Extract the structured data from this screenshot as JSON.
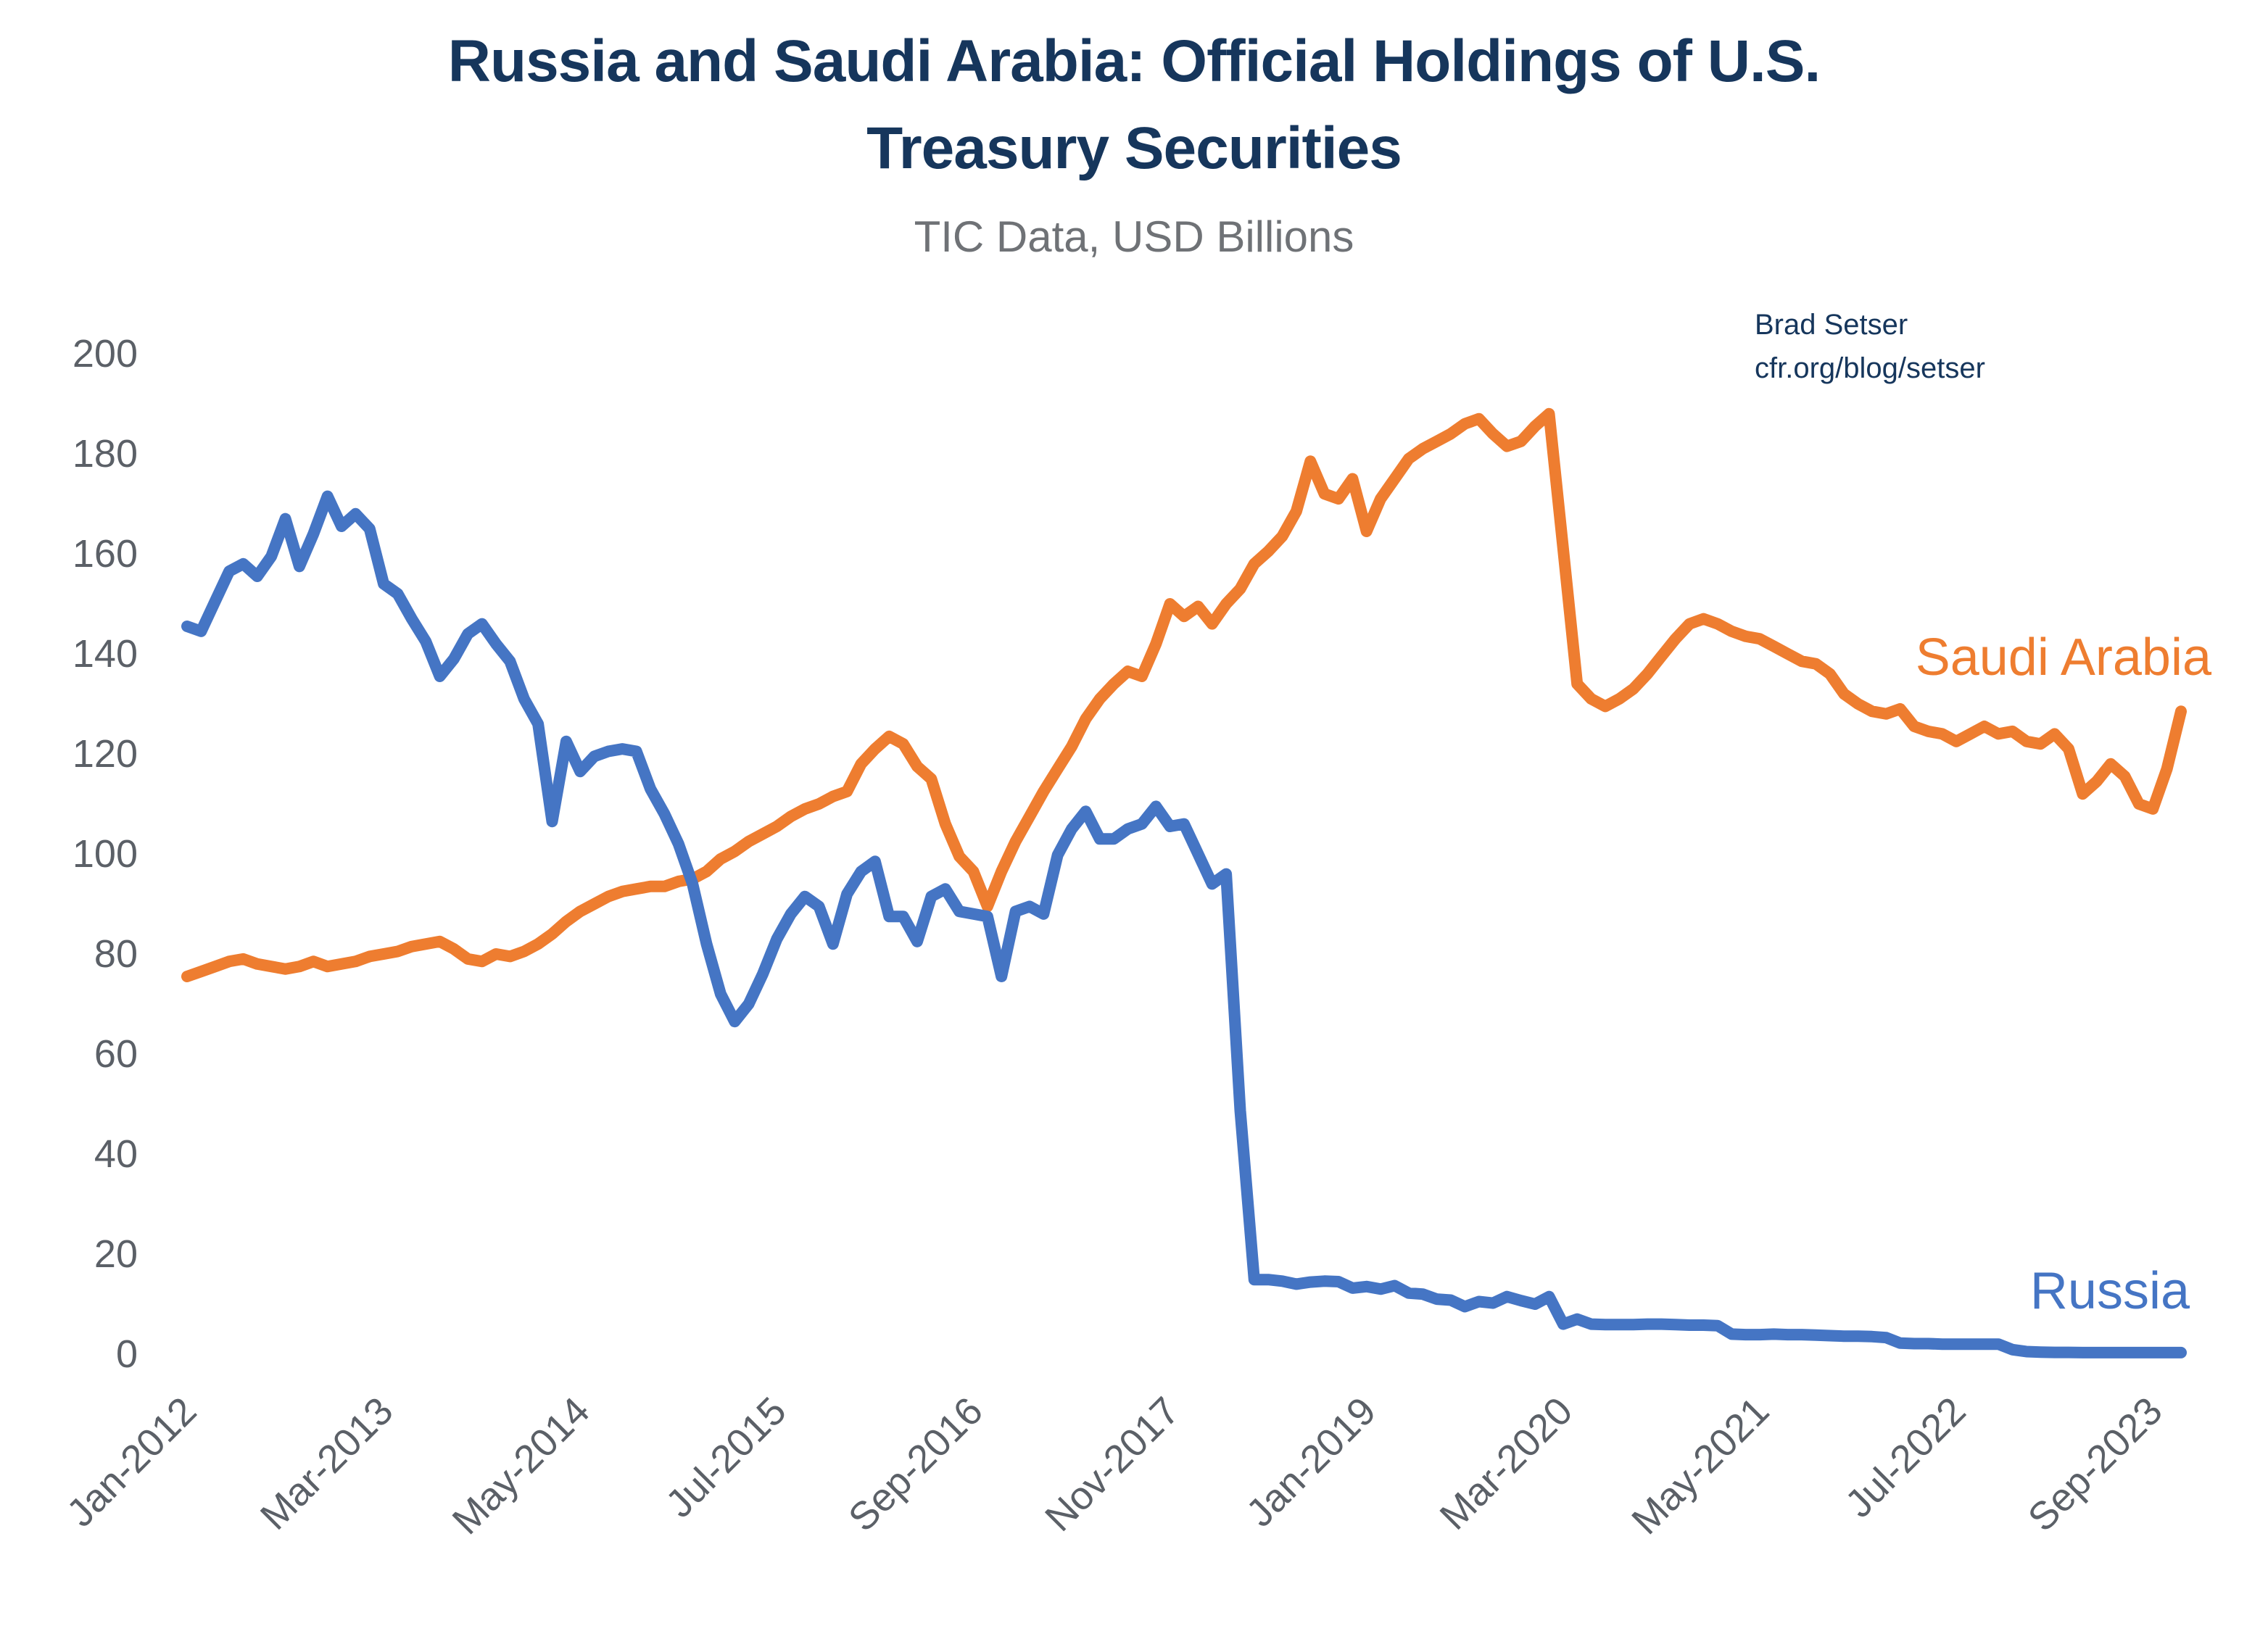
{
  "page": {
    "background": "#ffffff"
  },
  "header": {
    "title_line1": "Russia and Saudi Arabia: Official Holdings of U.S.",
    "title_line2": "Treasury Securities",
    "subtitle": "TIC Data, USD Billions",
    "title_color": "#16365C",
    "subtitle_color": "#6F7276"
  },
  "annotation": {
    "author": "Brad Setser",
    "url": "cfr.org/blog/setser",
    "color": "#16365C"
  },
  "chart_data": {
    "type": "line",
    "title": "Russia and Saudi Arabia: Official Holdings of U.S. Treasury Securities",
    "subtitle": "TIC Data, USD Billions",
    "x_start": "Jan-2012",
    "x_end": "Nov-2023",
    "x_frequency": "monthly",
    "xtick_labels": [
      "Jan-2012",
      "Mar-2013",
      "May-2014",
      "Jul-2015",
      "Sep-2016",
      "Nov-2017",
      "Jan-2019",
      "Mar-2020",
      "May-2021",
      "Jul-2022",
      "Sep-2023"
    ],
    "xtick_month_indices": [
      0,
      14,
      28,
      42,
      56,
      70,
      84,
      98,
      112,
      126,
      140
    ],
    "ytick_values": [
      200,
      180,
      160,
      140,
      120,
      100,
      80,
      60,
      40,
      20,
      0
    ],
    "ylim": [
      0,
      200
    ],
    "grid": false,
    "legend": "inline-end-labels",
    "axis_text_color": "#5B6067",
    "series": [
      {
        "name": "Saudi Arabia",
        "label_text": "Saudi Arabia",
        "color": "#EE7D30",
        "values": [
          75.5,
          76.5,
          77.5,
          78.5,
          79,
          78,
          77.5,
          77,
          77.5,
          78.5,
          77.5,
          78,
          78.5,
          79.5,
          80,
          80.5,
          81.5,
          82,
          82.5,
          81,
          79,
          78.5,
          80,
          79.5,
          80.5,
          82,
          84,
          86.5,
          88.5,
          90,
          91.5,
          92.5,
          93,
          93.5,
          93.5,
          94.5,
          95,
          96.5,
          99,
          100.5,
          102.5,
          104,
          105.5,
          107.5,
          109,
          110,
          111.5,
          112.5,
          118,
          121,
          123.5,
          122,
          117.5,
          115,
          106,
          99.5,
          96.5,
          89.5,
          96.5,
          102.5,
          107.5,
          112.5,
          117,
          121.5,
          127,
          131,
          134,
          136.5,
          135.5,
          142,
          150,
          147.5,
          149.5,
          146,
          150,
          153,
          158,
          160.5,
          163.5,
          168.5,
          178.5,
          172,
          171,
          175,
          164.5,
          171,
          175,
          179,
          181,
          182.5,
          184,
          186,
          187,
          184,
          181.5,
          182.5,
          185.5,
          188,
          161,
          134,
          131,
          129.5,
          131,
          133,
          136,
          139.5,
          143,
          146,
          147,
          146,
          144.5,
          143.5,
          143,
          141.5,
          140,
          138.5,
          138,
          136,
          132,
          130,
          128.5,
          128,
          129,
          125.5,
          124.5,
          124,
          122.5,
          124,
          125.5,
          124,
          124.5,
          122.5,
          122,
          124,
          121,
          112,
          114.5,
          118,
          115.5,
          110,
          109,
          117,
          128.5
        ]
      },
      {
        "name": "Russia",
        "label_text": "Russia",
        "color": "#4575C4",
        "values": [
          145.5,
          144.5,
          150.5,
          156.5,
          158,
          155.5,
          159.5,
          167,
          157.5,
          164,
          171.5,
          165.5,
          168,
          165,
          154,
          152,
          147,
          142.5,
          135.5,
          139,
          144,
          146,
          142,
          138.5,
          131,
          126,
          106.5,
          122.5,
          116.5,
          119.5,
          120.5,
          121,
          120.5,
          113,
          108,
          102,
          94,
          82,
          72,
          66.5,
          70,
          76,
          83,
          88,
          91.5,
          89.5,
          82,
          92,
          96.5,
          98.5,
          87.5,
          87.5,
          82.5,
          91.5,
          93,
          88.5,
          88,
          87.5,
          75.5,
          88.5,
          89.5,
          88,
          99.8,
          105,
          108.5,
          103,
          103,
          105,
          106,
          109.5,
          105.5,
          106,
          100,
          94,
          96,
          48.7,
          14.9,
          14.9,
          14.6,
          14,
          14.4,
          14.6,
          14.5,
          13.2,
          13.5,
          13,
          13.7,
          12.2,
          12,
          11,
          10.8,
          9.5,
          10.5,
          10.2,
          11.5,
          10.7,
          10,
          11.5,
          6,
          7,
          6,
          5.9,
          5.9,
          5.9,
          6,
          6,
          5.9,
          5.8,
          5.8,
          5.7,
          4,
          3.9,
          3.9,
          4,
          3.9,
          3.9,
          3.8,
          3.7,
          3.6,
          3.6,
          3.5,
          3.3,
          2.2,
          2.1,
          2.1,
          2,
          2,
          2,
          2,
          2,
          0.9,
          0.5,
          0.4,
          0.35,
          0.35,
          0.3,
          0.3,
          0.3,
          0.3,
          0.3,
          0.3,
          0.3,
          0.3
        ]
      }
    ]
  }
}
